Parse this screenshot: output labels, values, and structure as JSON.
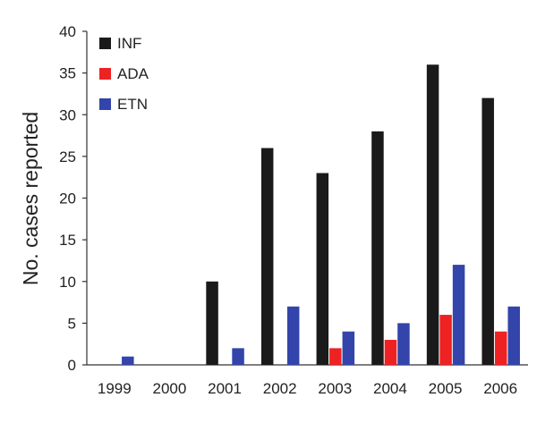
{
  "chart_data": {
    "type": "bar",
    "title": "",
    "xlabel": "",
    "ylabel": "No. cases reported",
    "ylim": [
      0,
      40
    ],
    "yticks": [
      0,
      5,
      10,
      15,
      20,
      25,
      30,
      35,
      40
    ],
    "categories": [
      "1999",
      "2000",
      "2001",
      "2002",
      "2003",
      "2004",
      "2005",
      "2006"
    ],
    "series": [
      {
        "name": "INF",
        "color": "#1a1a1a",
        "values": [
          0,
          0,
          10,
          26,
          23,
          28,
          36,
          32
        ]
      },
      {
        "name": "ADA",
        "color": "#ee2222",
        "values": [
          0,
          0,
          0,
          0,
          2,
          3,
          6,
          4
        ]
      },
      {
        "name": "ETN",
        "color": "#3344aa",
        "values": [
          1,
          0,
          2,
          7,
          4,
          5,
          12,
          7
        ]
      }
    ],
    "legend_position": "top-left",
    "grid": false
  }
}
